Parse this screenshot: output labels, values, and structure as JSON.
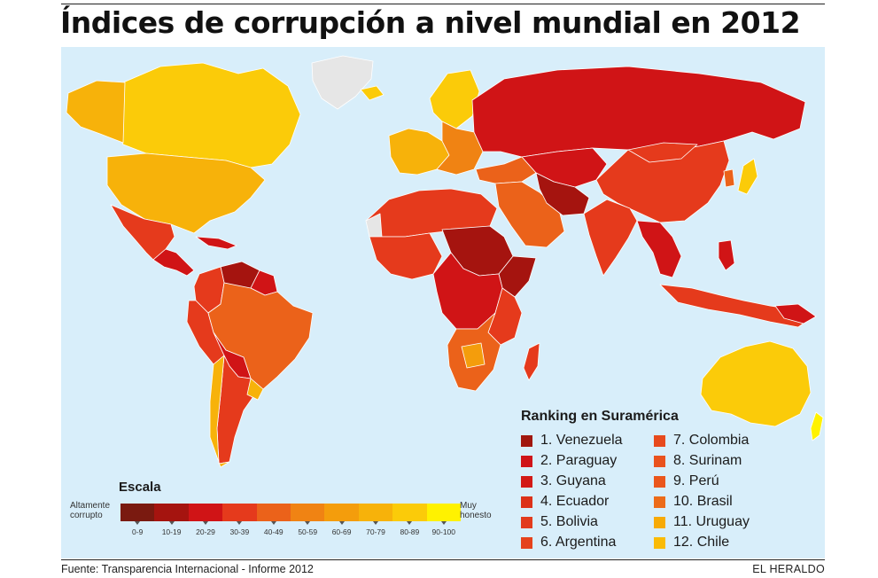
{
  "title": "Índices de corrupción a nivel mundial en 2012",
  "ranking": {
    "title": "Ranking en Suramérica",
    "items": [
      {
        "label": "1. Venezuela",
        "color": "#a0170f"
      },
      {
        "label": "2. Paraguay",
        "color": "#cf1419"
      },
      {
        "label": "3. Guyana",
        "color": "#d21a16"
      },
      {
        "label": "4. Ecuador",
        "color": "#dc3119"
      },
      {
        "label": "5. Bolivia",
        "color": "#e23b1d"
      },
      {
        "label": "6. Argentina",
        "color": "#e5421c"
      },
      {
        "label": "7. Colombia",
        "color": "#e74a1d"
      },
      {
        "label": "8. Surinam",
        "color": "#e9521e"
      },
      {
        "label": "9. Perú",
        "color": "#ea561c"
      },
      {
        "label": "10. Brasil",
        "color": "#ec6b19"
      },
      {
        "label": "11. Uruguay",
        "color": "#f7aa06"
      },
      {
        "label": "12. Chile",
        "color": "#fabb06"
      }
    ]
  },
  "scale": {
    "title": "Escala",
    "left_label": "Altamente corrupto",
    "right_label": "Muy honesto",
    "segments": [
      {
        "range": "0-9",
        "color": "#7a1a10"
      },
      {
        "range": "10-19",
        "color": "#a5140f"
      },
      {
        "range": "20-29",
        "color": "#d01416"
      },
      {
        "range": "30-39",
        "color": "#e53a1c"
      },
      {
        "range": "40-49",
        "color": "#eb621a"
      },
      {
        "range": "50-59",
        "color": "#f08313"
      },
      {
        "range": "60-69",
        "color": "#f49d0c"
      },
      {
        "range": "70-79",
        "color": "#f7b20a"
      },
      {
        "range": "80-89",
        "color": "#fbcb09"
      },
      {
        "range": "90-100",
        "color": "#fff200"
      }
    ]
  },
  "map_colors": {
    "ocean": "#d8eefa",
    "no_data": "#e6e6e6"
  },
  "footer": {
    "source": "Fuente: Transparencia Internacional - Informe 2012",
    "brand": "EL HERALDO"
  }
}
